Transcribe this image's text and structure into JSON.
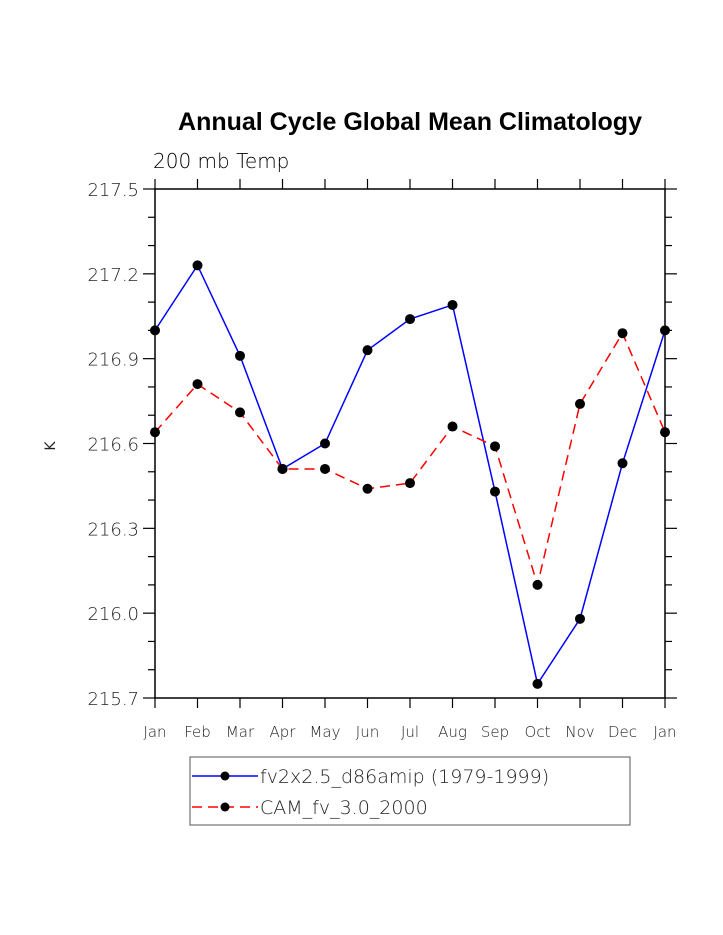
{
  "chart_data": {
    "type": "line",
    "title": "Annual Cycle Global Mean Climatology",
    "subtitle": "200 mb Temp",
    "xlabel": "",
    "ylabel": "K",
    "categories": [
      "Jan",
      "Feb",
      "Mar",
      "Apr",
      "May",
      "Jun",
      "Jul",
      "Aug",
      "Sep",
      "Oct",
      "Nov",
      "Dec",
      "Jan"
    ],
    "ylim": [
      215.7,
      217.5
    ],
    "yticks": [
      215.7,
      216.0,
      216.3,
      216.6,
      216.9,
      217.2,
      217.5
    ],
    "ytick_labels": [
      "215.7",
      "216.0",
      "216.3",
      "216.6",
      "216.9",
      "217.2",
      "217.5"
    ],
    "yminor_step": 0.1,
    "grid": false,
    "legend_position": "bottom-center",
    "series": [
      {
        "name": "fv2x2.5_d86amip (1979-1999)",
        "color": "#0000ff",
        "dash": "solid",
        "marker": "filled-circle",
        "values": [
          217.0,
          217.23,
          216.91,
          216.51,
          216.6,
          216.93,
          217.04,
          217.09,
          216.43,
          215.75,
          215.98,
          216.53,
          217.0
        ]
      },
      {
        "name": "CAM_fv_3.0_2000",
        "color": "#ff0000",
        "dash": "dashed",
        "marker": "filled-circle",
        "values": [
          216.64,
          216.81,
          216.71,
          216.51,
          216.51,
          216.44,
          216.46,
          216.66,
          216.59,
          216.1,
          216.74,
          216.99,
          216.64
        ]
      }
    ]
  }
}
